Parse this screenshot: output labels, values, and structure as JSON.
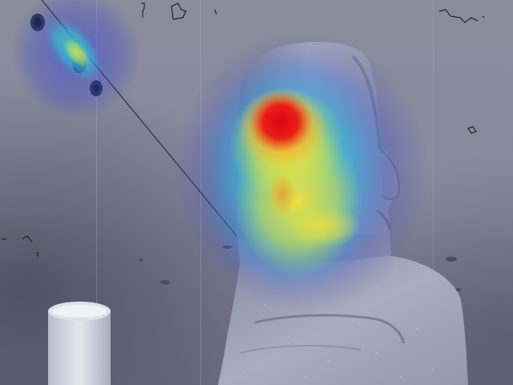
{
  "image": {
    "subject": "moai-statue",
    "overlay": "attention-heatmap",
    "colors": {
      "ceiling": "#8c8fa2",
      "stone": "#9fa3b4",
      "heat_peak": "#e0101a",
      "heat_high": "#f2e23a",
      "heat_mid": "#36d8c0",
      "heat_low": "#3a48d8"
    }
  }
}
